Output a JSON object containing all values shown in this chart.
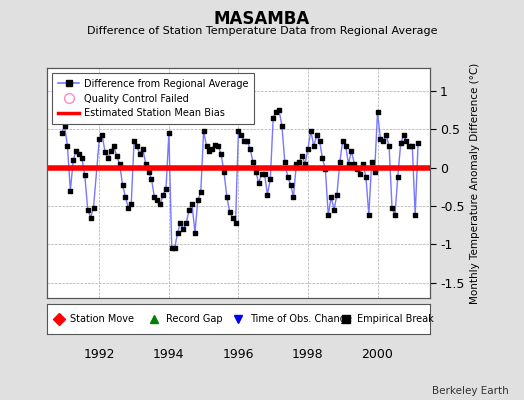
{
  "title": "MASAMBA",
  "subtitle": "Difference of Station Temperature Data from Regional Average",
  "ylabel_right": "Monthly Temperature Anomaly Difference (°C)",
  "bias": 0.0,
  "xlim": [
    1990.5,
    2001.5
  ],
  "ylim": [
    -1.7,
    1.3
  ],
  "yticks": [
    -1.5,
    -1.0,
    -0.5,
    0.0,
    0.5,
    1.0
  ],
  "xticks": [
    1992,
    1994,
    1996,
    1998,
    2000
  ],
  "line_color": "#7777ff",
  "marker_color": "#000000",
  "bias_color": "#ff0000",
  "background_color": "#e0e0e0",
  "plot_bg_color": "#ffffff",
  "grid_color": "#aaaaaa",
  "watermark": "Berkeley Earth",
  "data": [
    1990.917,
    0.45,
    1991.0,
    0.55,
    1991.083,
    0.28,
    1991.167,
    -0.3,
    1991.25,
    0.1,
    1991.333,
    0.22,
    1991.417,
    0.18,
    1991.5,
    0.12,
    1991.583,
    -0.1,
    1991.667,
    -0.55,
    1991.75,
    -0.65,
    1991.833,
    -0.52,
    1992.0,
    0.38,
    1992.083,
    0.42,
    1992.167,
    0.2,
    1992.25,
    0.12,
    1992.333,
    0.22,
    1992.417,
    0.28,
    1992.5,
    0.15,
    1992.583,
    0.05,
    1992.667,
    -0.22,
    1992.75,
    -0.38,
    1992.833,
    -0.52,
    1992.917,
    -0.48,
    1993.0,
    0.35,
    1993.083,
    0.28,
    1993.167,
    0.18,
    1993.25,
    0.25,
    1993.333,
    0.05,
    1993.417,
    -0.05,
    1993.5,
    -0.15,
    1993.583,
    -0.38,
    1993.667,
    -0.42,
    1993.75,
    -0.48,
    1993.833,
    -0.35,
    1993.917,
    -0.28,
    1994.0,
    0.45,
    1994.083,
    -1.05,
    1994.167,
    -1.05,
    1994.25,
    -0.85,
    1994.333,
    -0.72,
    1994.417,
    -0.8,
    1994.5,
    -0.72,
    1994.583,
    -0.55,
    1994.667,
    -0.48,
    1994.75,
    -0.85,
    1994.833,
    -0.42,
    1994.917,
    -0.32,
    1995.0,
    0.48,
    1995.083,
    0.28,
    1995.167,
    0.22,
    1995.25,
    0.25,
    1995.333,
    0.3,
    1995.417,
    0.28,
    1995.5,
    0.18,
    1995.583,
    -0.05,
    1995.667,
    -0.38,
    1995.75,
    -0.58,
    1995.833,
    -0.65,
    1995.917,
    -0.72,
    1996.0,
    0.48,
    1996.083,
    0.42,
    1996.167,
    0.35,
    1996.25,
    0.35,
    1996.333,
    0.25,
    1996.417,
    0.08,
    1996.5,
    -0.05,
    1996.583,
    -0.2,
    1996.667,
    -0.08,
    1996.75,
    -0.08,
    1996.833,
    -0.35,
    1996.917,
    -0.15,
    1997.0,
    0.65,
    1997.083,
    0.72,
    1997.167,
    0.75,
    1997.25,
    0.55,
    1997.333,
    0.08,
    1997.417,
    -0.12,
    1997.5,
    -0.22,
    1997.583,
    -0.38,
    1997.667,
    0.05,
    1997.75,
    0.08,
    1997.833,
    0.15,
    1997.917,
    0.05,
    1998.0,
    0.25,
    1998.083,
    0.48,
    1998.167,
    0.28,
    1998.25,
    0.42,
    1998.333,
    0.35,
    1998.417,
    0.12,
    1998.5,
    -0.02,
    1998.583,
    -0.62,
    1998.667,
    -0.38,
    1998.75,
    -0.55,
    1998.833,
    -0.35,
    1998.917,
    0.08,
    1999.0,
    0.35,
    1999.083,
    0.28,
    1999.167,
    0.05,
    1999.25,
    0.22,
    1999.333,
    0.05,
    1999.417,
    -0.02,
    1999.5,
    -0.08,
    1999.583,
    0.05,
    1999.667,
    -0.12,
    1999.75,
    -0.62,
    1999.833,
    0.08,
    1999.917,
    -0.05,
    2000.0,
    0.72,
    2000.083,
    0.38,
    2000.167,
    0.35,
    2000.25,
    0.42,
    2000.333,
    0.28,
    2000.417,
    -0.52,
    2000.5,
    -0.62,
    2000.583,
    -0.12,
    2000.667,
    0.32,
    2000.75,
    0.42,
    2000.833,
    0.35,
    2000.917,
    0.28,
    2001.0,
    0.28,
    2001.083,
    -0.62,
    2001.167,
    0.32
  ]
}
